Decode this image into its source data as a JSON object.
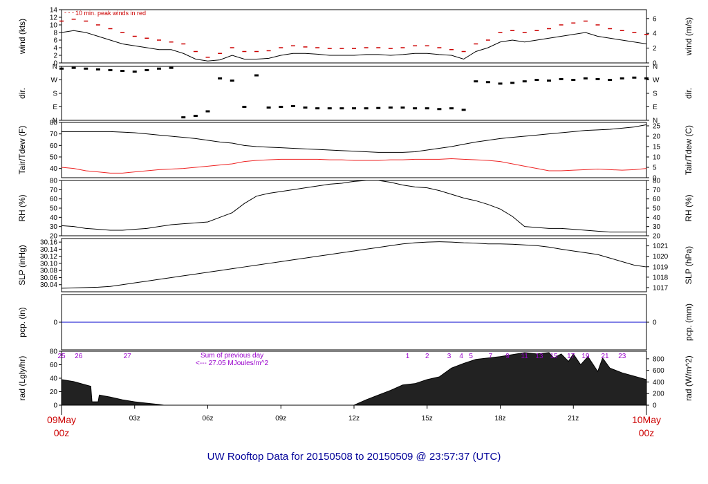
{
  "footer": {
    "title": "UW Rooftop Data for 20150508  to  20150509 @ 23:57:37  (UTC)"
  },
  "time_axis": {
    "ticks": [
      "03z",
      "06z",
      "09z",
      "12z",
      "15z",
      "18z",
      "21z"
    ],
    "start": {
      "date": "09May",
      "hour": "00z"
    },
    "end": {
      "date": "10May",
      "hour": "00z"
    }
  },
  "colors": {
    "line": "#000000",
    "gust": "#cc0000",
    "dewpoint": "#ee2222",
    "precip": "#0000cc",
    "accent": "#cc0000",
    "note": "#9900cc",
    "title": "#000099"
  },
  "chart_data": [
    {
      "id": "wind",
      "type": "line",
      "ylabel": "wind (kts)",
      "ylabel_right": "wind (m/s)",
      "ylim": [
        0,
        14
      ],
      "ylim_right": [
        0,
        7.2
      ],
      "yticks": [
        0,
        2,
        4,
        6,
        8,
        10,
        12,
        14
      ],
      "yticks_right": [
        0,
        2,
        4,
        6
      ],
      "annotation": "10 min. peak winds in red",
      "x_hours": [
        0,
        0.5,
        1,
        1.5,
        2,
        2.5,
        3,
        3.5,
        4,
        4.5,
        5,
        5.5,
        6,
        6.5,
        7,
        7.5,
        8,
        8.5,
        9,
        9.5,
        10,
        10.5,
        11,
        11.5,
        12,
        12.5,
        13,
        13.5,
        14,
        14.5,
        15,
        15.5,
        16,
        16.5,
        17,
        17.5,
        18,
        18.5,
        19,
        19.5,
        20,
        20.5,
        21,
        21.5,
        22,
        22.5,
        23,
        23.5,
        24
      ],
      "series": [
        {
          "values": [
            8,
            8.5,
            8,
            7,
            6,
            5,
            4.5,
            4,
            3.5,
            3.5,
            2.5,
            1,
            0.5,
            0.8,
            2,
            1,
            1,
            1.2,
            2,
            2.5,
            2.5,
            2.3,
            2,
            2,
            2,
            2.2,
            2.2,
            2,
            2.2,
            2.5,
            2.5,
            2.2,
            2,
            1,
            3,
            4,
            5.5,
            6,
            5.5,
            6,
            6.5,
            7,
            7.5,
            8,
            7,
            6.5,
            6,
            5.5,
            5
          ]
        },
        {
          "values": [
            11,
            11.5,
            11,
            10,
            9,
            8,
            7,
            6.5,
            6,
            5.5,
            5,
            3,
            1.5,
            2.5,
            4,
            3,
            3,
            3.2,
            4,
            4.5,
            4.2,
            4,
            3.8,
            3.8,
            3.8,
            4,
            4,
            3.8,
            4,
            4.5,
            4.5,
            4,
            3.5,
            3,
            5,
            6,
            8,
            8.5,
            8,
            8.5,
            9,
            10,
            10.5,
            11,
            10,
            9,
            8.5,
            8,
            7.5
          ]
        }
      ]
    },
    {
      "id": "dir",
      "type": "scatter",
      "ylabel": "dir.",
      "ylabel_right": "dir.",
      "ylim": [
        0,
        360
      ],
      "yticks": [
        0,
        90,
        180,
        270,
        360
      ],
      "ytick_labels": [
        "N",
        "E",
        "S",
        "W",
        "N"
      ],
      "x_hours": [
        0,
        0.5,
        1,
        1.5,
        2,
        2.5,
        3,
        3.5,
        4,
        4.5,
        5,
        5.5,
        6,
        6.5,
        7,
        7.5,
        8,
        8.5,
        9,
        9.5,
        10,
        10.5,
        11,
        11.5,
        12,
        12.5,
        13,
        13.5,
        14,
        14.5,
        15,
        15.5,
        16,
        16.5,
        17,
        17.5,
        18,
        18.5,
        19,
        19.5,
        20,
        20.5,
        21,
        21.5,
        22,
        22.5,
        23,
        23.5,
        24
      ],
      "series": [
        {
          "values": [
            345,
            350,
            345,
            340,
            335,
            330,
            325,
            335,
            345,
            350,
            20,
            30,
            60,
            280,
            265,
            90,
            300,
            85,
            90,
            95,
            85,
            80,
            80,
            80,
            80,
            80,
            82,
            85,
            85,
            80,
            80,
            75,
            80,
            70,
            260,
            255,
            245,
            250,
            260,
            270,
            265,
            275,
            270,
            280,
            275,
            270,
            280,
            285,
            280
          ]
        }
      ]
    },
    {
      "id": "temp",
      "type": "line",
      "ylabel": "Tair/Tdew (F)",
      "ylabel_right": "Tair/Tdew (C)",
      "ylim": [
        32,
        80
      ],
      "ylim_right": [
        0,
        26.67
      ],
      "yticks": [
        40,
        50,
        60,
        70,
        80
      ],
      "yticks_right": [
        0,
        5,
        10,
        15,
        20,
        25
      ],
      "x_hours": [
        0,
        0.5,
        1,
        1.5,
        2,
        2.5,
        3,
        3.5,
        4,
        4.5,
        5,
        5.5,
        6,
        6.5,
        7,
        7.5,
        8,
        8.5,
        9,
        9.5,
        10,
        10.5,
        11,
        11.5,
        12,
        12.5,
        13,
        13.5,
        14,
        14.5,
        15,
        15.5,
        16,
        16.5,
        17,
        17.5,
        18,
        18.5,
        19,
        19.5,
        20,
        20.5,
        21,
        21.5,
        22,
        22.5,
        23,
        23.5,
        24
      ],
      "series": [
        {
          "values": [
            72,
            72,
            72,
            72,
            72,
            71.5,
            71,
            70,
            69,
            68,
            67,
            66,
            64.5,
            63,
            62,
            60,
            59,
            58.5,
            58,
            57.5,
            57,
            56.5,
            56,
            55.5,
            55,
            54.5,
            54,
            54,
            54,
            54.5,
            56,
            57.5,
            59,
            61,
            63,
            64.5,
            66,
            67,
            68,
            69,
            70,
            71,
            72,
            73,
            73.5,
            74,
            75,
            76,
            78
          ]
        },
        {
          "values": [
            41,
            40,
            38,
            37,
            36,
            36,
            37,
            38,
            39,
            39.5,
            40,
            41,
            42,
            43,
            44,
            46,
            47,
            47.5,
            48,
            48,
            48,
            48,
            47.5,
            47.5,
            47,
            47,
            47,
            47.5,
            47.5,
            48,
            48,
            48,
            48.5,
            48,
            47.5,
            47,
            46,
            44,
            42,
            40,
            38,
            38,
            38.5,
            39,
            39.5,
            39,
            38.5,
            39,
            40
          ]
        }
      ]
    },
    {
      "id": "rh",
      "type": "line",
      "ylabel": "RH (%)",
      "ylabel_right": "RH (%)",
      "ylim": [
        20,
        80
      ],
      "yticks": [
        20,
        30,
        40,
        50,
        60,
        70,
        80
      ],
      "yticks_right": [
        20,
        30,
        40,
        50,
        60,
        70,
        80
      ],
      "x_hours": [
        0,
        0.5,
        1,
        1.5,
        2,
        2.5,
        3,
        3.5,
        4,
        4.5,
        5,
        5.5,
        6,
        6.5,
        7,
        7.5,
        8,
        8.5,
        9,
        9.5,
        10,
        10.5,
        11,
        11.5,
        12,
        12.5,
        13,
        13.5,
        14,
        14.5,
        15,
        15.5,
        16,
        16.5,
        17,
        17.5,
        18,
        18.5,
        19,
        19.5,
        20,
        20.5,
        21,
        21.5,
        22,
        22.5,
        23,
        23.5,
        24
      ],
      "series": [
        {
          "values": [
            31,
            30,
            28,
            27,
            26,
            26,
            27,
            28,
            30,
            32,
            33,
            34,
            35,
            40,
            45,
            55,
            63,
            66,
            68,
            70,
            72,
            74,
            76,
            77,
            79,
            80,
            80,
            78,
            75,
            73,
            72,
            69,
            65,
            61,
            58,
            54,
            49,
            41,
            30,
            29,
            28,
            28,
            27,
            26,
            25,
            24,
            24,
            24,
            24
          ]
        }
      ]
    },
    {
      "id": "slp",
      "type": "line",
      "ylabel": "SLP (inHg)",
      "ylabel_right": "SLP (hPa)",
      "ylim": [
        30.02,
        30.17
      ],
      "ylim_right": [
        1016.6,
        1021.7
      ],
      "yticks": [
        30.04,
        30.06,
        30.08,
        30.1,
        30.12,
        30.14,
        30.16
      ],
      "yticks_right": [
        1017,
        1018,
        1019,
        1020,
        1021
      ],
      "x_hours": [
        0,
        0.5,
        1,
        1.5,
        2,
        2.5,
        3,
        3.5,
        4,
        4.5,
        5,
        5.5,
        6,
        6.5,
        7,
        7.5,
        8,
        8.5,
        9,
        9.5,
        10,
        10.5,
        11,
        11.5,
        12,
        12.5,
        13,
        13.5,
        14,
        14.5,
        15,
        15.5,
        16,
        16.5,
        17,
        17.5,
        18,
        18.5,
        19,
        19.5,
        20,
        20.5,
        21,
        21.5,
        22,
        22.5,
        23,
        23.5,
        24
      ],
      "series": [
        {
          "values": [
            30.03,
            30.031,
            30.032,
            30.033,
            30.035,
            30.04,
            30.045,
            30.05,
            30.055,
            30.06,
            30.065,
            30.07,
            30.075,
            30.08,
            30.085,
            30.09,
            30.095,
            30.1,
            30.105,
            30.11,
            30.115,
            30.12,
            30.125,
            30.13,
            30.135,
            30.14,
            30.145,
            30.15,
            30.155,
            30.158,
            30.16,
            30.161,
            30.16,
            30.158,
            30.157,
            30.155,
            30.155,
            30.154,
            30.152,
            30.15,
            30.146,
            30.14,
            30.135,
            30.13,
            30.125,
            30.115,
            30.105,
            30.095,
            30.09
          ]
        }
      ]
    },
    {
      "id": "pcp",
      "type": "line",
      "ylabel": "pcp. (in)",
      "ylabel_right": "pcp. (mm)",
      "ylim": [
        -1,
        1
      ],
      "yticks": [
        0
      ],
      "yticks_right": [
        0
      ],
      "x_hours": [
        0,
        24
      ],
      "series": [
        {
          "values": [
            0,
            0
          ]
        }
      ]
    },
    {
      "id": "rad",
      "type": "area",
      "ylabel": "rad (Lgly/hr)",
      "ylabel_right": "rad (W/m^2)",
      "ylim": [
        0,
        80
      ],
      "ylim_right": [
        0,
        930
      ],
      "yticks": [
        0,
        20,
        40,
        60,
        80
      ],
      "yticks_right": [
        0,
        200,
        400,
        600,
        800
      ],
      "annotation_lines": [
        "Sum of previous day",
        "<--- 27.05 MJoules/m^2"
      ],
      "hour_labels": [
        {
          "hour": 0,
          "label": "25"
        },
        {
          "hour": 0.7,
          "label": "26"
        },
        {
          "hour": 2.7,
          "label": "27"
        },
        {
          "hour": 14.2,
          "label": "1"
        },
        {
          "hour": 15,
          "label": "2"
        },
        {
          "hour": 15.9,
          "label": "3"
        },
        {
          "hour": 16.4,
          "label": "4"
        },
        {
          "hour": 16.8,
          "label": "5"
        },
        {
          "hour": 17.6,
          "label": "7"
        },
        {
          "hour": 18.3,
          "label": "9"
        },
        {
          "hour": 19.0,
          "label": "11"
        },
        {
          "hour": 19.6,
          "label": "13"
        },
        {
          "hour": 20.2,
          "label": "15"
        },
        {
          "hour": 20.9,
          "label": "17"
        },
        {
          "hour": 21.5,
          "label": "19"
        },
        {
          "hour": 22.3,
          "label": "21"
        },
        {
          "hour": 23.0,
          "label": "23"
        }
      ],
      "x_hours": [
        0,
        0.5,
        1,
        1.2,
        1.25,
        1.5,
        1.55,
        2,
        2.5,
        3,
        3.5,
        4,
        4.2,
        12,
        12.5,
        13,
        13.5,
        14,
        14.5,
        15,
        15.5,
        16,
        16.5,
        17,
        17.5,
        18,
        18.5,
        19,
        19.5,
        20,
        20.2,
        20.5,
        20.8,
        21,
        21.3,
        21.6,
        22,
        22.2,
        22.5,
        23,
        23.5,
        24
      ],
      "series": [
        {
          "values": [
            38,
            35,
            30,
            28,
            5,
            5,
            15,
            12,
            8,
            5,
            3,
            1,
            0,
            0,
            8,
            15,
            22,
            30,
            32,
            38,
            42,
            55,
            62,
            68,
            70,
            72,
            75,
            78,
            76,
            78,
            70,
            76,
            65,
            76,
            60,
            72,
            50,
            70,
            55,
            48,
            43,
            38
          ]
        }
      ]
    }
  ]
}
